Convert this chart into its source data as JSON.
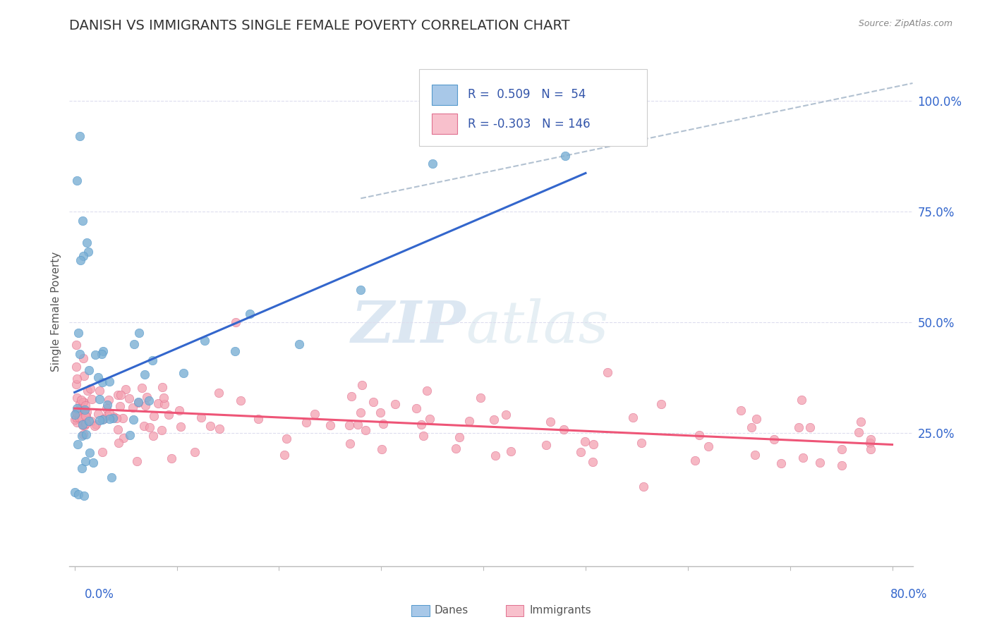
{
  "title": "DANISH VS IMMIGRANTS SINGLE FEMALE POVERTY CORRELATION CHART",
  "source": "Source: ZipAtlas.com",
  "ylabel": "Single Female Poverty",
  "right_yticklabels": [
    "25.0%",
    "50.0%",
    "75.0%",
    "100.0%"
  ],
  "right_yticks": [
    0.25,
    0.5,
    0.75,
    1.0
  ],
  "danes_R": 0.509,
  "danes_N": 54,
  "immigrants_R": -0.303,
  "immigrants_N": 146,
  "danes_color": "#7BAFD4",
  "danes_color_fill": "#A8C8E8",
  "danes_edge_color": "#5599CC",
  "immigrants_color": "#F4A0B0",
  "immigrants_color_fill": "#F8C0CC",
  "immigrants_edge_color": "#E07090",
  "danes_line_color": "#3366CC",
  "immigrants_line_color": "#EE5577",
  "dashed_line_color": "#AABBCC",
  "legend_text_color": "#3355AA",
  "right_tick_color": "#3366CC",
  "xlabel_color": "#3366CC",
  "title_fontsize": 14,
  "watermark_zip_color": "#C5D8E8",
  "watermark_atlas_color": "#C8D8E0"
}
